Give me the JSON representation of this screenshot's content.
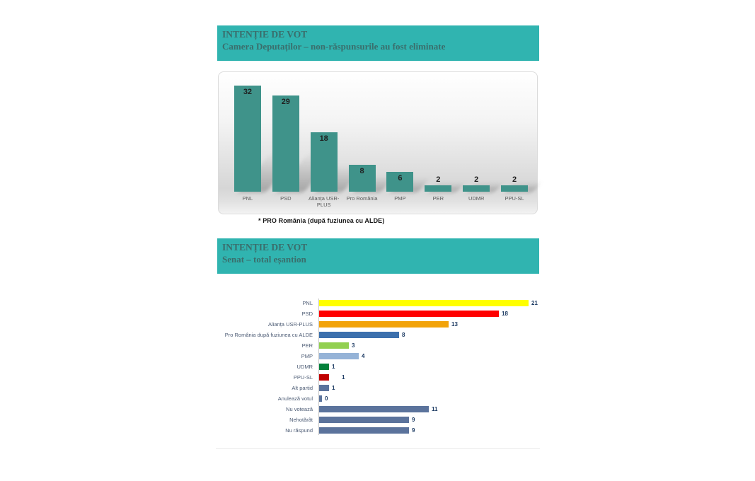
{
  "page": {
    "background": "#FFFFFF"
  },
  "chart_deputati": {
    "header": {
      "title": "INTENȚIE DE VOT",
      "subtitle": "Camera Deputaților – non-răspunsurile au fost eliminate",
      "bg_color": "#30B4B0",
      "text_color": "#3A6E6C"
    },
    "chart_data": {
      "type": "bar",
      "orientation": "vertical",
      "title": "INTENȚIE DE VOT — Camera Deputaților (non-răspunsurile au fost eliminate)",
      "categories": [
        "PNL",
        "PSD",
        "Alianța USR-PLUS",
        "Pro România",
        "PMP",
        "PER",
        "UDMR",
        "PPU-SL"
      ],
      "values": [
        32,
        29,
        18,
        8,
        6,
        2,
        2,
        2
      ],
      "bar_color": "#3F938A",
      "value_label_color": "#1F1F1F",
      "category_label_color": "#595959",
      "ylim": [
        0,
        36
      ],
      "grid": false,
      "legend": false,
      "plot_bg_gradient": [
        "#FFFFFF",
        "#D6D6D6",
        "#F3F3F3"
      ]
    },
    "footnote": "* PRO România (după fuziunea cu ALDE)"
  },
  "chart_senat": {
    "header": {
      "title": "INTENȚIE DE VOT",
      "subtitle": "Senat – total eșantion",
      "bg_color": "#30B4B0",
      "text_color": "#3A6E6C"
    },
    "chart_data": {
      "type": "bar",
      "orientation": "horizontal",
      "title": "INTENȚIE DE VOT — Senat (total eșantion)",
      "categories": [
        "PNL",
        "PSD",
        "Alianța USR-PLUS",
        "Pro România după fuziunea cu ALDE",
        "PER",
        "PMP",
        "UDMR",
        "PPU-SL",
        "Alt partid",
        "Anulează votul",
        "Nu votează",
        "Nehotărât",
        "Nu răspund"
      ],
      "values": [
        21,
        18,
        13,
        8,
        3,
        4,
        1,
        1,
        1,
        0,
        11,
        9,
        9
      ],
      "colors": [
        "#FFFF00",
        "#FF0000",
        "#F2A30A",
        "#3C70AD",
        "#92D050",
        "#95B3D7",
        "#03813A",
        "#C00000",
        "#5B739C",
        "#5B739C",
        "#5B739C",
        "#5B739C",
        "#5B739C"
      ],
      "value_label_color": "#1E3C64",
      "category_label_color": "#4C5B74",
      "xlim": [
        0,
        21
      ],
      "grid": false,
      "legend": false
    }
  }
}
